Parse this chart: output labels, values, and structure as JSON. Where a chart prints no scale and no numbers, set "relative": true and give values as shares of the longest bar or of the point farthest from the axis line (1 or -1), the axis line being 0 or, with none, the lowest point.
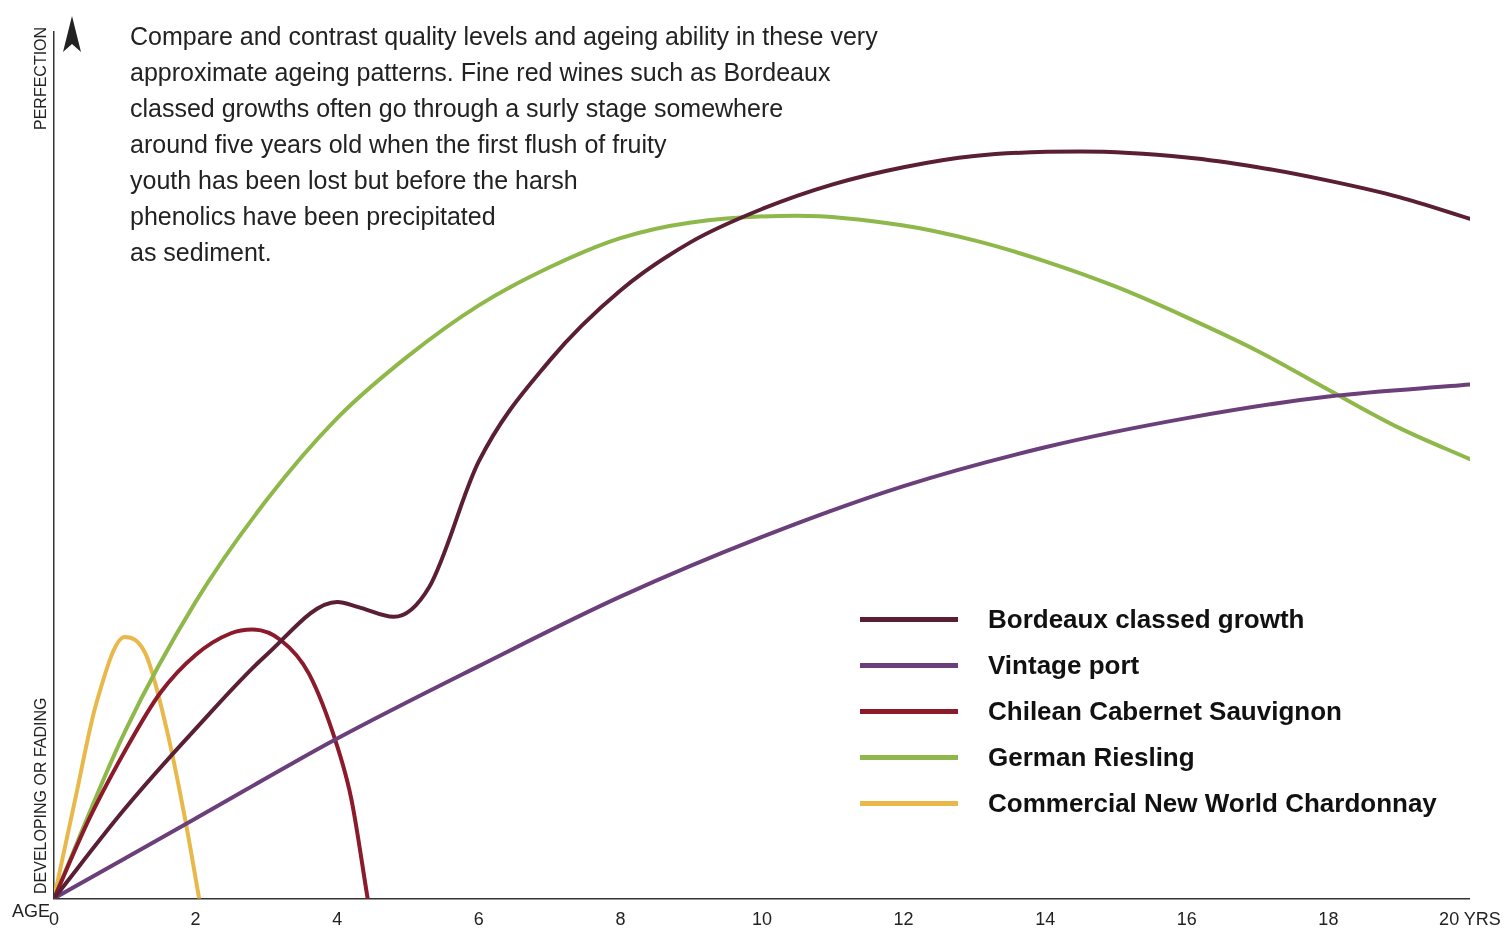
{
  "chart_data": {
    "type": "line",
    "relative": true,
    "xlabel": "AGE",
    "ylabel": "DEVELOPING OR FADING",
    "annotations": [
      "Compare and contrast quality levels and ageing ability in these very\napproximate ageing patterns. Fine red wines such as Bordeaux\nclassed growths often go through a surly stage somewhere\naround five years old when the first flush of fruity\nyouth has been lost but before the harsh\nphenolics have been precipitated\nas sediment.",
      "PERFECTION"
    ],
    "xlim": [
      0,
      20
    ],
    "xticks": [
      0,
      2,
      4,
      6,
      8,
      10,
      12,
      14,
      16,
      18,
      {
        "value": 20,
        "label": "20 YRS"
      }
    ],
    "grid": false,
    "legend": "bottom right",
    "marker": "none",
    "line_style": "solid",
    "series": [
      {
        "name": "Bordeaux classed growth",
        "color": "#5a1f35",
        "x": [
          0,
          1,
          2,
          3,
          4,
          4.3,
          4.8,
          5.3,
          6,
          7,
          8,
          9,
          10,
          11,
          12,
          13,
          14.5,
          16,
          17,
          18,
          19,
          20
        ],
        "values": [
          0,
          0.12,
          0.227,
          0.326,
          0.397,
          0.39,
          0.377,
          0.417,
          0.585,
          0.72,
          0.814,
          0.879,
          0.923,
          0.956,
          0.979,
          0.994,
          1.0,
          0.992,
          0.979,
          0.961,
          0.939,
          0.91
        ]
      },
      {
        "name": "Vintage port",
        "color": "#6a3f7a",
        "x": [
          0,
          2,
          4,
          6,
          8,
          10,
          12,
          14,
          16,
          18,
          20
        ],
        "values": [
          0,
          0.107,
          0.214,
          0.311,
          0.404,
          0.484,
          0.552,
          0.604,
          0.643,
          0.672,
          0.688
        ]
      },
      {
        "name": "Chilean Cabernet Sauvignon",
        "color": "#8b1a2b",
        "x": [
          0,
          0.5,
          1,
          1.5,
          2,
          2.5,
          2.8,
          3.2,
          3.6,
          4,
          4.2,
          4.43
        ],
        "values": [
          0,
          0.107,
          0.197,
          0.275,
          0.326,
          0.355,
          0.36,
          0.346,
          0.301,
          0.204,
          0.133,
          0
        ]
      },
      {
        "name": "German Riesling",
        "color": "#8fb84a",
        "x": [
          0,
          1,
          2,
          3,
          4,
          5,
          6,
          7,
          8,
          9,
          10.5,
          12,
          13,
          14,
          15,
          16,
          17,
          18,
          19,
          20
        ],
        "values": [
          0,
          0.223,
          0.397,
          0.533,
          0.643,
          0.726,
          0.794,
          0.845,
          0.884,
          0.905,
          0.914,
          0.901,
          0.881,
          0.853,
          0.819,
          0.778,
          0.733,
          0.681,
          0.63,
          0.588
        ]
      },
      {
        "name": "Commercial New World Chardonnay",
        "color": "#e8b84a",
        "x": [
          0,
          0.3,
          0.6,
          1,
          1.3,
          1.6,
          1.85,
          2.05
        ],
        "values": [
          0,
          0.133,
          0.262,
          0.35,
          0.326,
          0.223,
          0.107,
          0
        ]
      }
    ]
  }
}
